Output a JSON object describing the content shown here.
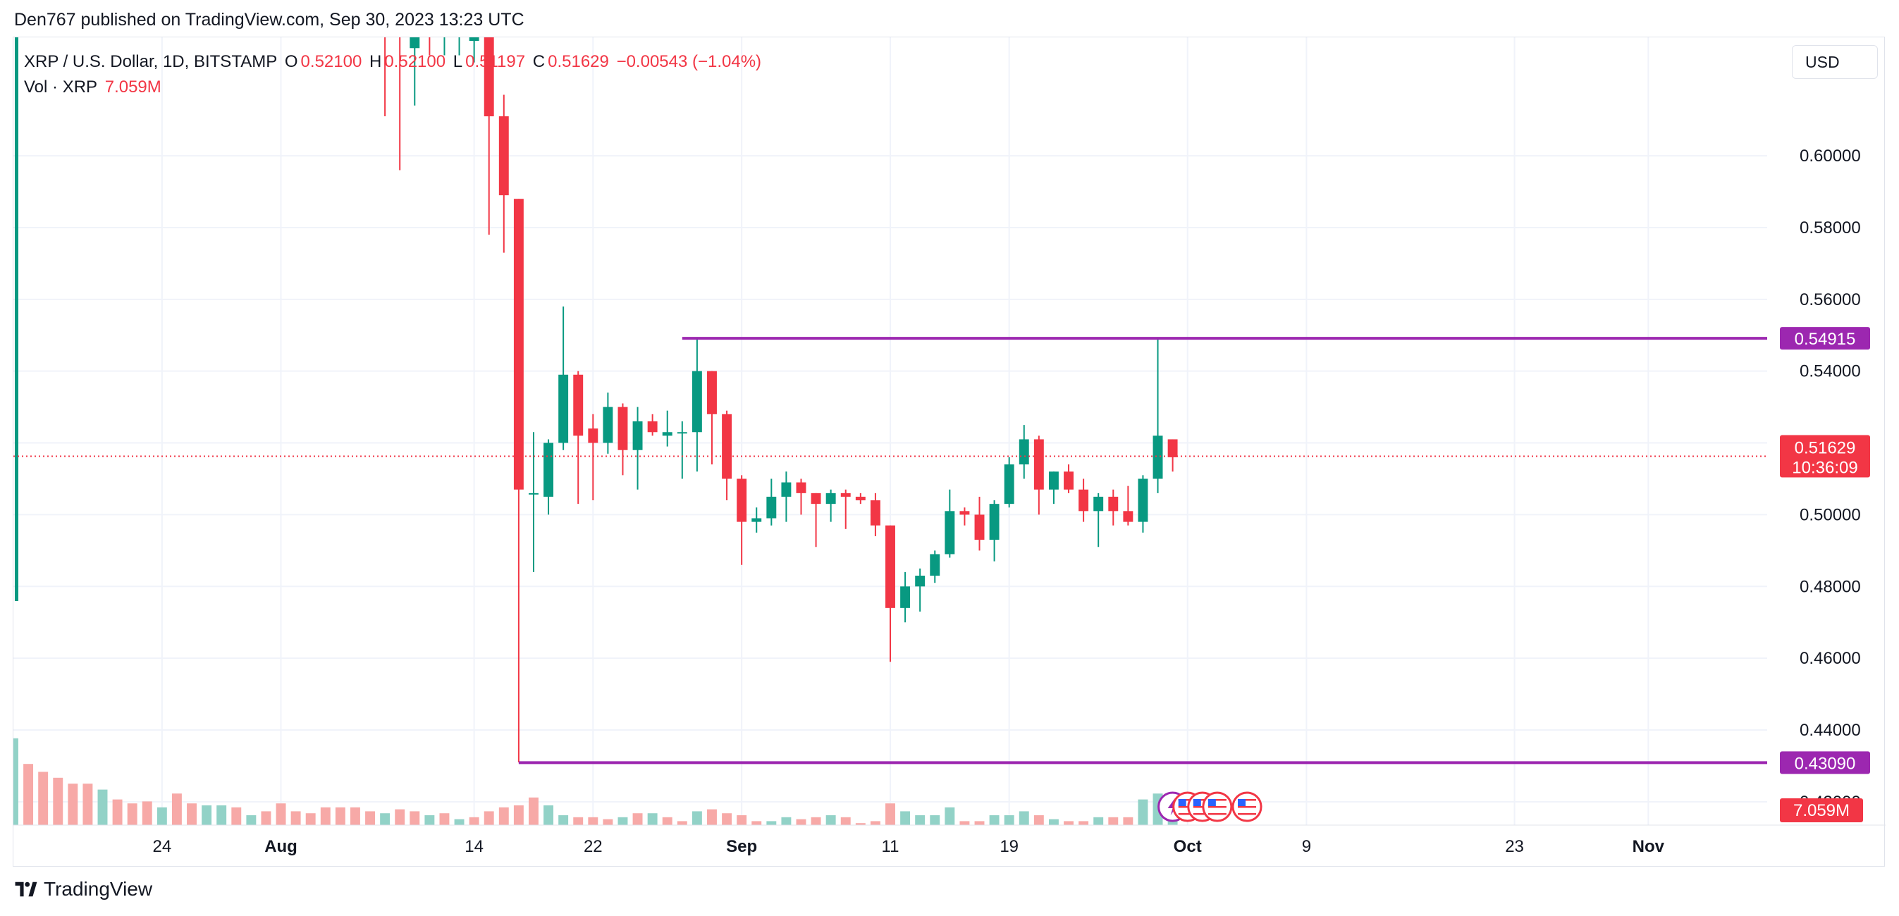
{
  "header": {
    "published_text": "Den767 published on TradingView.com, Sep 30, 2023 13:23 UTC"
  },
  "legend": {
    "symbol": "XRP / U.S. Dollar, 1D, BITSTAMP",
    "o_label": "O",
    "o_value": "0.52100",
    "h_label": "H",
    "h_value": "0.52100",
    "l_label": "L",
    "l_value": "0.51197",
    "c_label": "C",
    "c_value": "0.51629",
    "change": "−0.00543 (−1.04%)",
    "vol_label": "Vol · XRP",
    "vol_value": "7.059M"
  },
  "currency_button": "USD",
  "footer": {
    "brand": "TradingView"
  },
  "colors": {
    "up": "#089981",
    "down": "#f23645",
    "vol_up": "#92d2c7",
    "vol_down": "#f7a9a7",
    "level_line": "#9c27b0",
    "grid": "#f0f3fa",
    "text": "#131722"
  },
  "chart_data": {
    "type": "candlestick",
    "symbol": "XRP / U.S. Dollar",
    "interval": "1D",
    "exchange": "BITSTAMP",
    "x_start": "2023-07-14",
    "x_end": "2023-11-09",
    "ylim": [
      0.4135,
      0.633
    ],
    "y_ticks": [
      "0.42000",
      "0.44000",
      "0.46000",
      "0.48000",
      "0.50000",
      "0.52000",
      "0.54000",
      "0.56000",
      "0.58000",
      "0.60000"
    ],
    "x_ticks": [
      {
        "date": "2023-07-24",
        "label": "24"
      },
      {
        "date": "2023-08-01",
        "label": "Aug"
      },
      {
        "date": "2023-08-14",
        "label": "14"
      },
      {
        "date": "2023-08-22",
        "label": "22"
      },
      {
        "date": "2023-09-01",
        "label": "Sep"
      },
      {
        "date": "2023-09-11",
        "label": "11"
      },
      {
        "date": "2023-09-19",
        "label": "19"
      },
      {
        "date": "2023-10-01",
        "label": "Oct"
      },
      {
        "date": "2023-10-09",
        "label": "9"
      },
      {
        "date": "2023-10-23",
        "label": "23"
      },
      {
        "date": "2023-11-01",
        "label": "Nov"
      }
    ],
    "grid": true,
    "last_price": {
      "value": 0.51629,
      "label": "0.51629",
      "countdown": "10:36:09"
    },
    "levels": [
      {
        "value": 0.54915,
        "label": "0.54915",
        "from": "2023-08-28"
      },
      {
        "value": 0.4309,
        "label": "0.43090",
        "from": "2023-08-17"
      }
    ],
    "volume_label": "7.059M",
    "candles": [
      {
        "date": "2023-08-08",
        "o": 0.64,
        "h": 0.65,
        "l": 0.611,
        "c": 0.635
      },
      {
        "date": "2023-08-09",
        "o": 0.641,
        "h": 0.648,
        "l": 0.596,
        "c": 0.64
      },
      {
        "date": "2023-08-10",
        "o": 0.63,
        "h": 0.645,
        "l": 0.614,
        "c": 0.641
      },
      {
        "date": "2023-08-11",
        "o": 0.641,
        "h": 0.65,
        "l": 0.628,
        "c": 0.636
      },
      {
        "date": "2023-08-12",
        "o": 0.636,
        "h": 0.648,
        "l": 0.628,
        "c": 0.637
      },
      {
        "date": "2023-08-13",
        "o": 0.636,
        "h": 0.645,
        "l": 0.628,
        "c": 0.638
      },
      {
        "date": "2023-08-14",
        "o": 0.632,
        "h": 0.65,
        "l": 0.626,
        "c": 0.64
      },
      {
        "date": "2023-08-15",
        "o": 0.635,
        "h": 0.64,
        "l": 0.578,
        "c": 0.611
      },
      {
        "date": "2023-08-16",
        "o": 0.611,
        "h": 0.617,
        "l": 0.573,
        "c": 0.589
      },
      {
        "date": "2023-08-17",
        "o": 0.588,
        "h": 0.588,
        "l": 0.431,
        "c": 0.507
      },
      {
        "date": "2023-08-18",
        "o": 0.506,
        "h": 0.523,
        "l": 0.484,
        "c": 0.506
      },
      {
        "date": "2023-08-19",
        "o": 0.505,
        "h": 0.521,
        "l": 0.5,
        "c": 0.52
      },
      {
        "date": "2023-08-20",
        "o": 0.52,
        "h": 0.558,
        "l": 0.518,
        "c": 0.539
      },
      {
        "date": "2023-08-21",
        "o": 0.539,
        "h": 0.54,
        "l": 0.503,
        "c": 0.522
      },
      {
        "date": "2023-08-22",
        "o": 0.524,
        "h": 0.528,
        "l": 0.504,
        "c": 0.52
      },
      {
        "date": "2023-08-23",
        "o": 0.52,
        "h": 0.534,
        "l": 0.517,
        "c": 0.53
      },
      {
        "date": "2023-08-24",
        "o": 0.53,
        "h": 0.531,
        "l": 0.511,
        "c": 0.518
      },
      {
        "date": "2023-08-25",
        "o": 0.518,
        "h": 0.53,
        "l": 0.507,
        "c": 0.526
      },
      {
        "date": "2023-08-26",
        "o": 0.526,
        "h": 0.528,
        "l": 0.522,
        "c": 0.523
      },
      {
        "date": "2023-08-27",
        "o": 0.522,
        "h": 0.529,
        "l": 0.519,
        "c": 0.523
      },
      {
        "date": "2023-08-28",
        "o": 0.523,
        "h": 0.526,
        "l": 0.51,
        "c": 0.523
      },
      {
        "date": "2023-08-29",
        "o": 0.523,
        "h": 0.549,
        "l": 0.512,
        "c": 0.54
      },
      {
        "date": "2023-08-30",
        "o": 0.54,
        "h": 0.54,
        "l": 0.514,
        "c": 0.528
      },
      {
        "date": "2023-08-31",
        "o": 0.528,
        "h": 0.529,
        "l": 0.504,
        "c": 0.51
      },
      {
        "date": "2023-09-01",
        "o": 0.51,
        "h": 0.511,
        "l": 0.486,
        "c": 0.498
      },
      {
        "date": "2023-09-02",
        "o": 0.498,
        "h": 0.502,
        "l": 0.495,
        "c": 0.499
      },
      {
        "date": "2023-09-03",
        "o": 0.499,
        "h": 0.51,
        "l": 0.497,
        "c": 0.505
      },
      {
        "date": "2023-09-04",
        "o": 0.505,
        "h": 0.512,
        "l": 0.498,
        "c": 0.509
      },
      {
        "date": "2023-09-05",
        "o": 0.509,
        "h": 0.51,
        "l": 0.5,
        "c": 0.506
      },
      {
        "date": "2023-09-06",
        "o": 0.506,
        "h": 0.506,
        "l": 0.491,
        "c": 0.503
      },
      {
        "date": "2023-09-07",
        "o": 0.503,
        "h": 0.507,
        "l": 0.498,
        "c": 0.506
      },
      {
        "date": "2023-09-08",
        "o": 0.506,
        "h": 0.507,
        "l": 0.496,
        "c": 0.505
      },
      {
        "date": "2023-09-09",
        "o": 0.505,
        "h": 0.506,
        "l": 0.503,
        "c": 0.504
      },
      {
        "date": "2023-09-10",
        "o": 0.504,
        "h": 0.506,
        "l": 0.494,
        "c": 0.497
      },
      {
        "date": "2023-09-11",
        "o": 0.497,
        "h": 0.497,
        "l": 0.459,
        "c": 0.474
      },
      {
        "date": "2023-09-12",
        "o": 0.474,
        "h": 0.484,
        "l": 0.47,
        "c": 0.48
      },
      {
        "date": "2023-09-13",
        "o": 0.48,
        "h": 0.485,
        "l": 0.473,
        "c": 0.483
      },
      {
        "date": "2023-09-14",
        "o": 0.483,
        "h": 0.49,
        "l": 0.481,
        "c": 0.489
      },
      {
        "date": "2023-09-15",
        "o": 0.489,
        "h": 0.507,
        "l": 0.488,
        "c": 0.501
      },
      {
        "date": "2023-09-16",
        "o": 0.501,
        "h": 0.502,
        "l": 0.497,
        "c": 0.5
      },
      {
        "date": "2023-09-17",
        "o": 0.5,
        "h": 0.505,
        "l": 0.49,
        "c": 0.493
      },
      {
        "date": "2023-09-18",
        "o": 0.493,
        "h": 0.504,
        "l": 0.487,
        "c": 0.503
      },
      {
        "date": "2023-09-19",
        "o": 0.503,
        "h": 0.516,
        "l": 0.502,
        "c": 0.514
      },
      {
        "date": "2023-09-20",
        "o": 0.514,
        "h": 0.525,
        "l": 0.51,
        "c": 0.521
      },
      {
        "date": "2023-09-21",
        "o": 0.521,
        "h": 0.522,
        "l": 0.5,
        "c": 0.507
      },
      {
        "date": "2023-09-22",
        "o": 0.507,
        "h": 0.512,
        "l": 0.503,
        "c": 0.512
      },
      {
        "date": "2023-09-23",
        "o": 0.512,
        "h": 0.514,
        "l": 0.506,
        "c": 0.507
      },
      {
        "date": "2023-09-24",
        "o": 0.507,
        "h": 0.51,
        "l": 0.498,
        "c": 0.501
      },
      {
        "date": "2023-09-25",
        "o": 0.501,
        "h": 0.506,
        "l": 0.491,
        "c": 0.505
      },
      {
        "date": "2023-09-26",
        "o": 0.505,
        "h": 0.507,
        "l": 0.497,
        "c": 0.501
      },
      {
        "date": "2023-09-27",
        "o": 0.501,
        "h": 0.508,
        "l": 0.497,
        "c": 0.498
      },
      {
        "date": "2023-09-28",
        "o": 0.498,
        "h": 0.511,
        "l": 0.495,
        "c": 0.51
      },
      {
        "date": "2023-09-29",
        "o": 0.51,
        "h": 0.549,
        "l": 0.506,
        "c": 0.522
      },
      {
        "date": "2023-09-30",
        "o": 0.521,
        "h": 0.521,
        "l": 0.512,
        "c": 0.516
      }
    ],
    "volume": [
      {
        "date": "2023-07-14",
        "v": 0.44,
        "up": true
      },
      {
        "date": "2023-07-15",
        "v": 0.31,
        "up": false
      },
      {
        "date": "2023-07-16",
        "v": 0.27,
        "up": false
      },
      {
        "date": "2023-07-17",
        "v": 0.24,
        "up": false
      },
      {
        "date": "2023-07-18",
        "v": 0.21,
        "up": false
      },
      {
        "date": "2023-07-19",
        "v": 0.21,
        "up": false
      },
      {
        "date": "2023-07-20",
        "v": 0.18,
        "up": true
      },
      {
        "date": "2023-07-21",
        "v": 0.13,
        "up": false
      },
      {
        "date": "2023-07-22",
        "v": 0.11,
        "up": false
      },
      {
        "date": "2023-07-23",
        "v": 0.12,
        "up": false
      },
      {
        "date": "2023-07-24",
        "v": 0.09,
        "up": true
      },
      {
        "date": "2023-07-25",
        "v": 0.16,
        "up": false
      },
      {
        "date": "2023-07-26",
        "v": 0.11,
        "up": false
      },
      {
        "date": "2023-07-27",
        "v": 0.1,
        "up": true
      },
      {
        "date": "2023-07-28",
        "v": 0.1,
        "up": true
      },
      {
        "date": "2023-07-29",
        "v": 0.09,
        "up": false
      },
      {
        "date": "2023-07-30",
        "v": 0.05,
        "up": true
      },
      {
        "date": "2023-07-31",
        "v": 0.07,
        "up": false
      },
      {
        "date": "2023-08-01",
        "v": 0.11,
        "up": false
      },
      {
        "date": "2023-08-02",
        "v": 0.07,
        "up": false
      },
      {
        "date": "2023-08-03",
        "v": 0.06,
        "up": false
      },
      {
        "date": "2023-08-04",
        "v": 0.09,
        "up": false
      },
      {
        "date": "2023-08-05",
        "v": 0.09,
        "up": false
      },
      {
        "date": "2023-08-06",
        "v": 0.09,
        "up": false
      },
      {
        "date": "2023-08-07",
        "v": 0.07,
        "up": false
      },
      {
        "date": "2023-08-08",
        "v": 0.06,
        "up": true
      },
      {
        "date": "2023-08-09",
        "v": 0.08,
        "up": false
      },
      {
        "date": "2023-08-10",
        "v": 0.07,
        "up": false
      },
      {
        "date": "2023-08-11",
        "v": 0.05,
        "up": true
      },
      {
        "date": "2023-08-12",
        "v": 0.06,
        "up": false
      },
      {
        "date": "2023-08-13",
        "v": 0.03,
        "up": true
      },
      {
        "date": "2023-08-14",
        "v": 0.04,
        "up": false
      },
      {
        "date": "2023-08-15",
        "v": 0.07,
        "up": false
      },
      {
        "date": "2023-08-16",
        "v": 0.09,
        "up": false
      },
      {
        "date": "2023-08-17",
        "v": 0.1,
        "up": false
      },
      {
        "date": "2023-08-18",
        "v": 0.14,
        "up": false
      },
      {
        "date": "2023-08-19",
        "v": 0.1,
        "up": true
      },
      {
        "date": "2023-08-20",
        "v": 0.05,
        "up": true
      },
      {
        "date": "2023-08-21",
        "v": 0.04,
        "up": false
      },
      {
        "date": "2023-08-22",
        "v": 0.04,
        "up": false
      },
      {
        "date": "2023-08-23",
        "v": 0.03,
        "up": false
      },
      {
        "date": "2023-08-24",
        "v": 0.04,
        "up": true
      },
      {
        "date": "2023-08-25",
        "v": 0.06,
        "up": false
      },
      {
        "date": "2023-08-26",
        "v": 0.06,
        "up": true
      },
      {
        "date": "2023-08-27",
        "v": 0.04,
        "up": false
      },
      {
        "date": "2023-08-28",
        "v": 0.02,
        "up": false
      },
      {
        "date": "2023-08-29",
        "v": 0.07,
        "up": true
      },
      {
        "date": "2023-08-30",
        "v": 0.08,
        "up": false
      },
      {
        "date": "2023-08-31",
        "v": 0.06,
        "up": false
      },
      {
        "date": "2023-09-01",
        "v": 0.05,
        "up": false
      },
      {
        "date": "2023-09-02",
        "v": 0.02,
        "up": false
      },
      {
        "date": "2023-09-03",
        "v": 0.02,
        "up": true
      },
      {
        "date": "2023-09-04",
        "v": 0.04,
        "up": true
      },
      {
        "date": "2023-09-05",
        "v": 0.03,
        "up": false
      },
      {
        "date": "2023-09-06",
        "v": 0.04,
        "up": false
      },
      {
        "date": "2023-09-07",
        "v": 0.05,
        "up": true
      },
      {
        "date": "2023-09-08",
        "v": 0.04,
        "up": false
      },
      {
        "date": "2023-09-09",
        "v": 0.01,
        "up": false
      },
      {
        "date": "2023-09-10",
        "v": 0.02,
        "up": false
      },
      {
        "date": "2023-09-11",
        "v": 0.11,
        "up": false
      },
      {
        "date": "2023-09-12",
        "v": 0.07,
        "up": true
      },
      {
        "date": "2023-09-13",
        "v": 0.05,
        "up": true
      },
      {
        "date": "2023-09-14",
        "v": 0.05,
        "up": true
      },
      {
        "date": "2023-09-15",
        "v": 0.09,
        "up": true
      },
      {
        "date": "2023-09-16",
        "v": 0.02,
        "up": false
      },
      {
        "date": "2023-09-17",
        "v": 0.02,
        "up": false
      },
      {
        "date": "2023-09-18",
        "v": 0.05,
        "up": true
      },
      {
        "date": "2023-09-19",
        "v": 0.05,
        "up": true
      },
      {
        "date": "2023-09-20",
        "v": 0.07,
        "up": true
      },
      {
        "date": "2023-09-21",
        "v": 0.05,
        "up": false
      },
      {
        "date": "2023-09-22",
        "v": 0.03,
        "up": true
      },
      {
        "date": "2023-09-23",
        "v": 0.02,
        "up": false
      },
      {
        "date": "2023-09-24",
        "v": 0.02,
        "up": false
      },
      {
        "date": "2023-09-25",
        "v": 0.04,
        "up": true
      },
      {
        "date": "2023-09-26",
        "v": 0.04,
        "up": false
      },
      {
        "date": "2023-09-27",
        "v": 0.04,
        "up": false
      },
      {
        "date": "2023-09-28",
        "v": 0.13,
        "up": true
      },
      {
        "date": "2023-09-29",
        "v": 0.16,
        "up": true
      },
      {
        "date": "2023-09-30",
        "v": 0.14,
        "up": true
      }
    ]
  },
  "event_icons": [
    {
      "name": "lightning-event-icon",
      "date": "2023-09-30"
    },
    {
      "name": "us-flag-event-icon",
      "date": "2023-10-01"
    },
    {
      "name": "us-flag-event-icon",
      "date": "2023-10-02"
    },
    {
      "name": "us-flag-event-icon",
      "date": "2023-10-03"
    },
    {
      "name": "us-flag-event-icon",
      "date": "2023-10-05"
    }
  ]
}
